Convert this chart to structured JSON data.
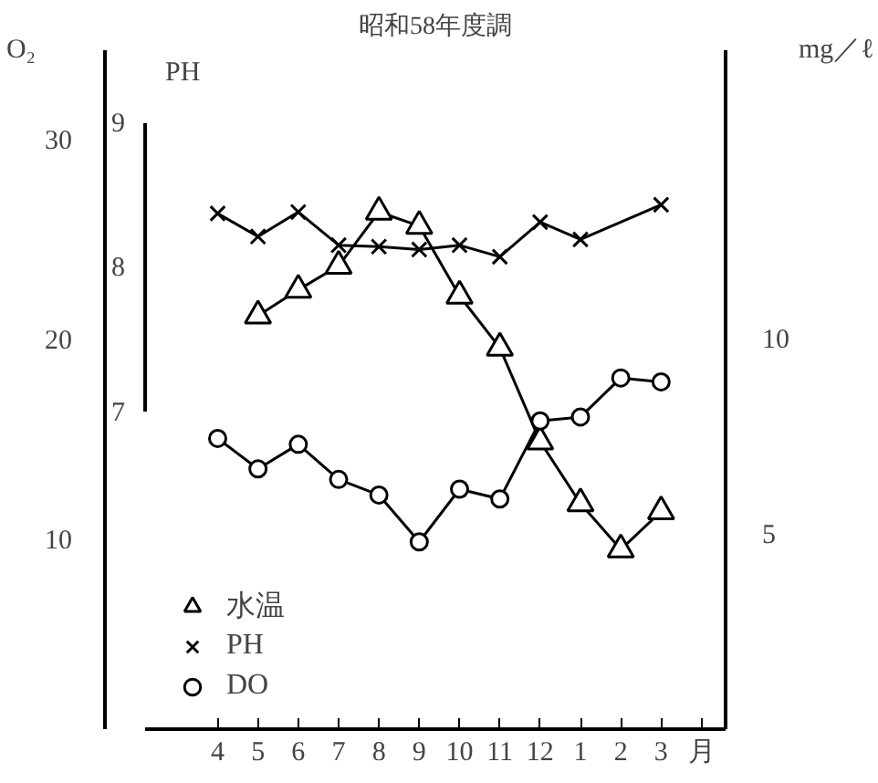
{
  "chart_data": {
    "type": "line",
    "title": "昭和58年度調",
    "categories": [
      "4",
      "5",
      "6",
      "7",
      "8",
      "9",
      "10",
      "11",
      "12",
      "1",
      "2",
      "3"
    ],
    "xlabel": "月",
    "ylabel": "O₂",
    "y2label": "mg／ℓ",
    "y3label": "PH",
    "ylim": [
      0.5,
      34.5
    ],
    "yticks": [
      10,
      20,
      30
    ],
    "y2lim": [
      0,
      17.4
    ],
    "y2ticks": [
      5,
      10
    ],
    "y3lim": [
      7,
      9
    ],
    "y3ticks": [
      7,
      8,
      9
    ],
    "grid": false,
    "legend": "bottom left",
    "line_style": "solid",
    "series": [
      {
        "name": "水温",
        "color": "#000000",
        "marker": "triangle",
        "values": [
          null,
          21.2,
          22.5,
          23.7,
          26.4,
          25.7,
          22.2,
          19.6,
          14.9,
          11.8,
          9.5,
          11.4
        ]
      },
      {
        "name": "PH",
        "color": "#000000",
        "marker": "cross",
        "axis": "y3",
        "values": [
          8.37,
          8.21,
          8.38,
          8.15,
          8.14,
          8.12,
          8.15,
          8.07,
          8.31,
          8.19,
          null,
          8.43
        ]
      },
      {
        "name": "DO",
        "color": "#000000",
        "marker": "circle",
        "axis": "y2",
        "values": [
          7.45,
          6.67,
          7.3,
          6.4,
          6.0,
          4.8,
          6.15,
          5.9,
          7.9,
          8.0,
          9.0,
          8.9
        ]
      }
    ]
  }
}
